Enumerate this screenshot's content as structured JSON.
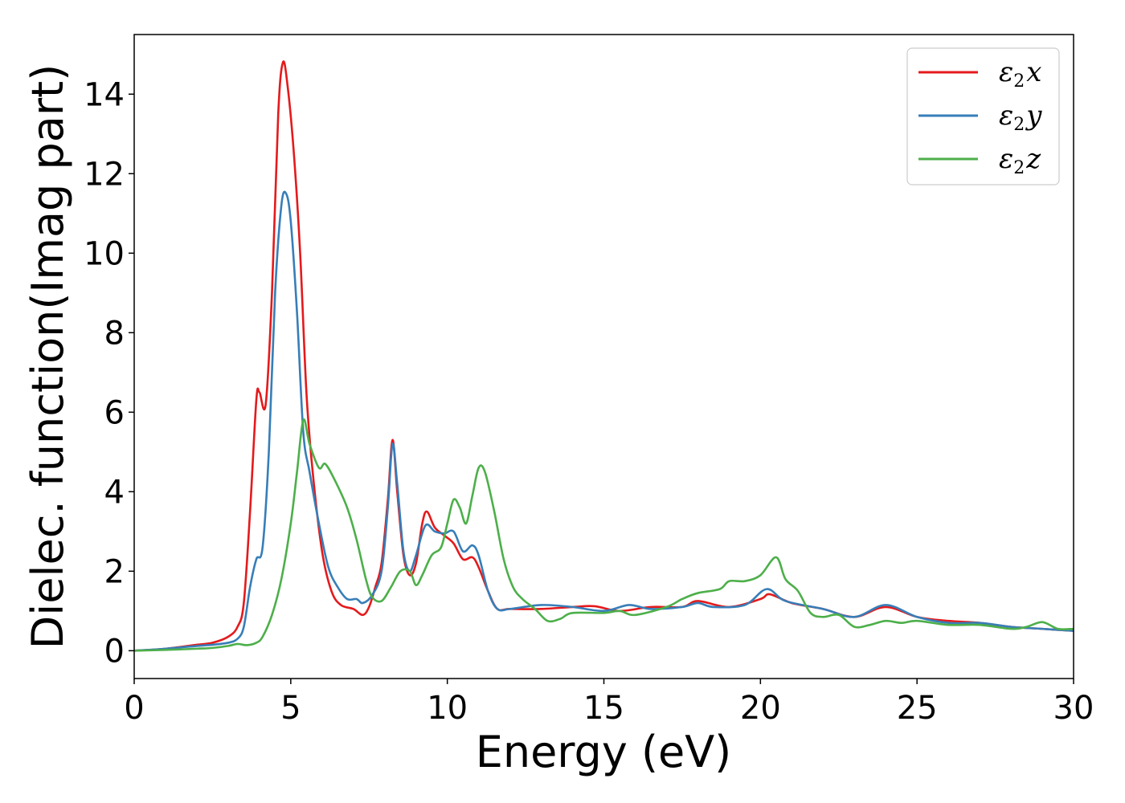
{
  "chart_data": {
    "type": "line",
    "xlabel": "Energy (eV)",
    "ylabel": "Dielec. function(Imag part)",
    "xlim": [
      0,
      30
    ],
    "ylim": [
      -0.7,
      15.5
    ],
    "xticks": [
      0,
      5,
      10,
      15,
      20,
      25,
      30
    ],
    "xtick_labels": [
      "0",
      "5",
      "10",
      "15",
      "20",
      "25",
      "30"
    ],
    "yticks": [
      0,
      2,
      4,
      6,
      8,
      10,
      12,
      14
    ],
    "ytick_labels": [
      "0",
      "2",
      "4",
      "6",
      "8",
      "10",
      "12",
      "14"
    ],
    "grid": false,
    "legend_position": "top-right",
    "series": [
      {
        "name": "ε2x",
        "color": "#e41a1c",
        "points": [
          [
            0,
            0
          ],
          [
            1,
            0.05
          ],
          [
            2,
            0.15
          ],
          [
            2.5,
            0.2
          ],
          [
            3,
            0.35
          ],
          [
            3.3,
            0.6
          ],
          [
            3.5,
            1.2
          ],
          [
            3.7,
            3.5
          ],
          [
            3.9,
            6.3
          ],
          [
            4.0,
            6.5
          ],
          [
            4.2,
            6.2
          ],
          [
            4.4,
            9
          ],
          [
            4.6,
            13.5
          ],
          [
            4.75,
            14.8
          ],
          [
            4.9,
            14.2
          ],
          [
            5.1,
            12.5
          ],
          [
            5.3,
            10
          ],
          [
            5.5,
            6.5
          ],
          [
            5.7,
            4.5
          ],
          [
            6.0,
            2.5
          ],
          [
            6.3,
            1.5
          ],
          [
            6.6,
            1.15
          ],
          [
            7.0,
            1.05
          ],
          [
            7.3,
            0.9
          ],
          [
            7.5,
            1.1
          ],
          [
            7.7,
            1.6
          ],
          [
            7.9,
            2.2
          ],
          [
            8.1,
            3.8
          ],
          [
            8.25,
            5.3
          ],
          [
            8.4,
            4
          ],
          [
            8.6,
            2.4
          ],
          [
            8.8,
            1.9
          ],
          [
            9.0,
            2.2
          ],
          [
            9.2,
            3.2
          ],
          [
            9.35,
            3.5
          ],
          [
            9.6,
            3.1
          ],
          [
            9.9,
            2.9
          ],
          [
            10.2,
            2.7
          ],
          [
            10.5,
            2.3
          ],
          [
            10.8,
            2.35
          ],
          [
            11.0,
            2.1
          ],
          [
            11.3,
            1.5
          ],
          [
            11.6,
            1.05
          ],
          [
            12,
            1.05
          ],
          [
            13,
            1.05
          ],
          [
            14,
            1.1
          ],
          [
            14.7,
            1.12
          ],
          [
            15.5,
            1.0
          ],
          [
            16.5,
            1.1
          ],
          [
            17.5,
            1.1
          ],
          [
            18,
            1.25
          ],
          [
            19,
            1.1
          ],
          [
            20,
            1.3
          ],
          [
            20.3,
            1.42
          ],
          [
            21,
            1.2
          ],
          [
            22,
            1.05
          ],
          [
            23,
            0.85
          ],
          [
            24,
            1.1
          ],
          [
            25,
            0.85
          ],
          [
            26,
            0.75
          ],
          [
            27,
            0.7
          ],
          [
            28,
            0.6
          ],
          [
            29,
            0.55
          ],
          [
            30,
            0.5
          ]
        ]
      },
      {
        "name": "ε2y",
        "color": "#377eb8",
        "points": [
          [
            0,
            0
          ],
          [
            1,
            0.05
          ],
          [
            2,
            0.12
          ],
          [
            2.5,
            0.15
          ],
          [
            3,
            0.2
          ],
          [
            3.3,
            0.3
          ],
          [
            3.5,
            0.6
          ],
          [
            3.7,
            1.6
          ],
          [
            3.9,
            2.3
          ],
          [
            4.1,
            2.6
          ],
          [
            4.3,
            5
          ],
          [
            4.5,
            9
          ],
          [
            4.7,
            11.2
          ],
          [
            4.85,
            11.5
          ],
          [
            5.0,
            10.8
          ],
          [
            5.2,
            8.5
          ],
          [
            5.4,
            5.5
          ],
          [
            5.6,
            4.5
          ],
          [
            5.9,
            3.2
          ],
          [
            6.2,
            2.1
          ],
          [
            6.5,
            1.6
          ],
          [
            6.8,
            1.3
          ],
          [
            7.1,
            1.3
          ],
          [
            7.3,
            1.2
          ],
          [
            7.6,
            1.4
          ],
          [
            7.9,
            2.0
          ],
          [
            8.1,
            3.6
          ],
          [
            8.25,
            5.2
          ],
          [
            8.4,
            4.2
          ],
          [
            8.6,
            2.5
          ],
          [
            8.8,
            2.0
          ],
          [
            9.0,
            2.4
          ],
          [
            9.3,
            3.15
          ],
          [
            9.6,
            3.0
          ],
          [
            9.9,
            2.95
          ],
          [
            10.2,
            3.0
          ],
          [
            10.5,
            2.5
          ],
          [
            10.8,
            2.65
          ],
          [
            11.0,
            2.4
          ],
          [
            11.3,
            1.5
          ],
          [
            11.6,
            1.05
          ],
          [
            12,
            1.05
          ],
          [
            13,
            1.15
          ],
          [
            14,
            1.1
          ],
          [
            15,
            1.0
          ],
          [
            15.8,
            1.15
          ],
          [
            16.5,
            1.05
          ],
          [
            17.5,
            1.1
          ],
          [
            18,
            1.2
          ],
          [
            18.5,
            1.1
          ],
          [
            19.5,
            1.15
          ],
          [
            20.2,
            1.55
          ],
          [
            20.8,
            1.25
          ],
          [
            22,
            1.05
          ],
          [
            23,
            0.85
          ],
          [
            24,
            1.15
          ],
          [
            25,
            0.85
          ],
          [
            26,
            0.7
          ],
          [
            27,
            0.7
          ],
          [
            28,
            0.6
          ],
          [
            29,
            0.55
          ],
          [
            30,
            0.5
          ]
        ]
      },
      {
        "name": "ε2z",
        "color": "#4daf4a",
        "points": [
          [
            0,
            0
          ],
          [
            1,
            0.02
          ],
          [
            2,
            0.05
          ],
          [
            2.5,
            0.07
          ],
          [
            3,
            0.12
          ],
          [
            3.3,
            0.17
          ],
          [
            3.6,
            0.14
          ],
          [
            3.9,
            0.2
          ],
          [
            4.1,
            0.35
          ],
          [
            4.4,
            0.9
          ],
          [
            4.7,
            1.8
          ],
          [
            5.0,
            3.2
          ],
          [
            5.2,
            4.5
          ],
          [
            5.4,
            5.8
          ],
          [
            5.6,
            5.2
          ],
          [
            5.9,
            4.6
          ],
          [
            6.1,
            4.7
          ],
          [
            6.4,
            4.3
          ],
          [
            6.8,
            3.6
          ],
          [
            7.1,
            2.8
          ],
          [
            7.4,
            1.8
          ],
          [
            7.6,
            1.35
          ],
          [
            7.9,
            1.25
          ],
          [
            8.2,
            1.6
          ],
          [
            8.5,
            2.0
          ],
          [
            8.8,
            2.0
          ],
          [
            9.0,
            1.65
          ],
          [
            9.2,
            1.9
          ],
          [
            9.5,
            2.4
          ],
          [
            9.8,
            2.6
          ],
          [
            10.0,
            3.2
          ],
          [
            10.2,
            3.8
          ],
          [
            10.4,
            3.6
          ],
          [
            10.6,
            3.2
          ],
          [
            10.8,
            3.9
          ],
          [
            11.0,
            4.6
          ],
          [
            11.2,
            4.5
          ],
          [
            11.5,
            3.5
          ],
          [
            11.8,
            2.3
          ],
          [
            12.1,
            1.6
          ],
          [
            12.4,
            1.3
          ],
          [
            12.8,
            1.05
          ],
          [
            13.2,
            0.75
          ],
          [
            13.6,
            0.8
          ],
          [
            14,
            0.95
          ],
          [
            15,
            0.95
          ],
          [
            15.5,
            1.0
          ],
          [
            16,
            0.9
          ],
          [
            17,
            1.1
          ],
          [
            17.5,
            1.3
          ],
          [
            18,
            1.45
          ],
          [
            18.7,
            1.55
          ],
          [
            19,
            1.75
          ],
          [
            19.5,
            1.75
          ],
          [
            20,
            1.9
          ],
          [
            20.5,
            2.35
          ],
          [
            20.8,
            1.8
          ],
          [
            21.2,
            1.5
          ],
          [
            21.6,
            0.95
          ],
          [
            22,
            0.85
          ],
          [
            22.5,
            0.9
          ],
          [
            23,
            0.6
          ],
          [
            23.5,
            0.65
          ],
          [
            24,
            0.75
          ],
          [
            24.5,
            0.7
          ],
          [
            25,
            0.75
          ],
          [
            26,
            0.65
          ],
          [
            27,
            0.65
          ],
          [
            28,
            0.55
          ],
          [
            28.5,
            0.6
          ],
          [
            29,
            0.72
          ],
          [
            29.5,
            0.55
          ],
          [
            30,
            0.55
          ]
        ]
      }
    ]
  }
}
